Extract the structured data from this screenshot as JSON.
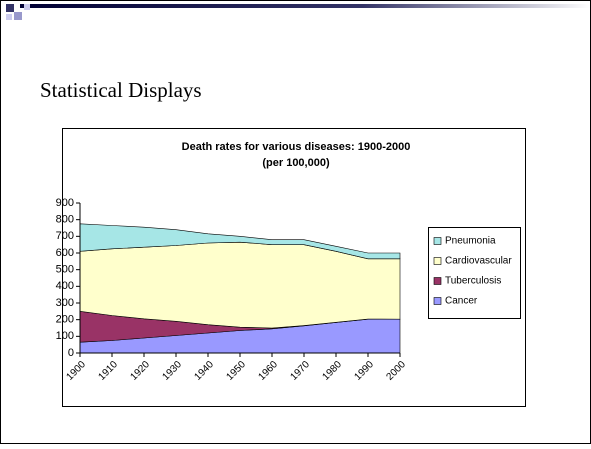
{
  "slide_title": "Statistical Displays",
  "chart_data": {
    "type": "area",
    "stacked": true,
    "title": "Death rates for various diseases: 1900-2000",
    "subtitle": "(per 100,000)",
    "categories": [
      "1900",
      "1910",
      "1920",
      "1930",
      "1940",
      "1950",
      "1960",
      "1970",
      "1980",
      "1990",
      "2000"
    ],
    "series": [
      {
        "name": "Cancer",
        "color": "#9999ff",
        "values": [
          65,
          75,
          90,
          105,
          120,
          135,
          145,
          163,
          183,
          203,
          203
        ]
      },
      {
        "name": "Tuberculosis",
        "color": "#993366",
        "values": [
          185,
          150,
          115,
          85,
          50,
          20,
          5,
          2,
          1,
          1,
          0
        ]
      },
      {
        "name": "Cardiovascular",
        "color": "#ffffcc",
        "values": [
          360,
          400,
          430,
          455,
          490,
          510,
          500,
          485,
          426,
          361,
          362
        ]
      },
      {
        "name": "Pneumonia",
        "color": "#a6e6e6",
        "values": [
          165,
          140,
          120,
          95,
          55,
          35,
          30,
          30,
          30,
          35,
          35
        ]
      }
    ],
    "ylim": [
      0,
      900
    ],
    "yticks": [
      0,
      100,
      200,
      300,
      400,
      500,
      600,
      700,
      800,
      900
    ],
    "legend": "right",
    "grid": false
  }
}
